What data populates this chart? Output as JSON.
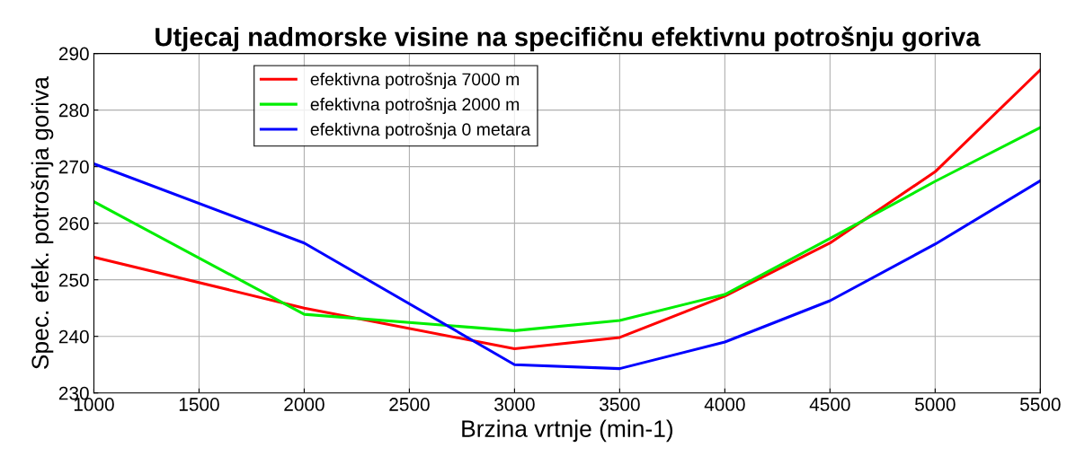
{
  "chart_data": {
    "type": "line",
    "title": "Utjecaj nadmorske visine na specifičnu efektivnu potrošnju goriva",
    "xlabel": "Brzina vrtnje (min-1)",
    "ylabel": "Spec. efek. potrošnja goriva",
    "x": [
      1000,
      2000,
      3000,
      3500,
      4000,
      4500,
      5000,
      5500
    ],
    "series": [
      {
        "name": "efektivna potrošnja 7000 m",
        "color": "#ff0000",
        "values": [
          254.0,
          245.0,
          237.8,
          239.8,
          247.1,
          256.5,
          269.1,
          287.1
        ]
      },
      {
        "name": "efektivna potrošnja 2000 m",
        "color": "#00ee00",
        "values": [
          263.8,
          243.9,
          241.0,
          242.8,
          247.4,
          257.3,
          267.4,
          276.9
        ]
      },
      {
        "name": "efektivna potrošnja 0 metara",
        "color": "#0000ff",
        "values": [
          270.5,
          256.5,
          235.0,
          234.3,
          239.0,
          246.3,
          256.3,
          267.5
        ]
      }
    ],
    "xlim": [
      1000,
      5500
    ],
    "xticks": [
      1000,
      1500,
      2000,
      2500,
      3000,
      3500,
      4000,
      4500,
      5000,
      5500
    ],
    "ylim": [
      230,
      290
    ],
    "yticks": [
      230,
      240,
      250,
      260,
      270,
      280,
      290
    ],
    "grid": true,
    "legend": "top left",
    "marker": "none",
    "line_style": "solid"
  }
}
